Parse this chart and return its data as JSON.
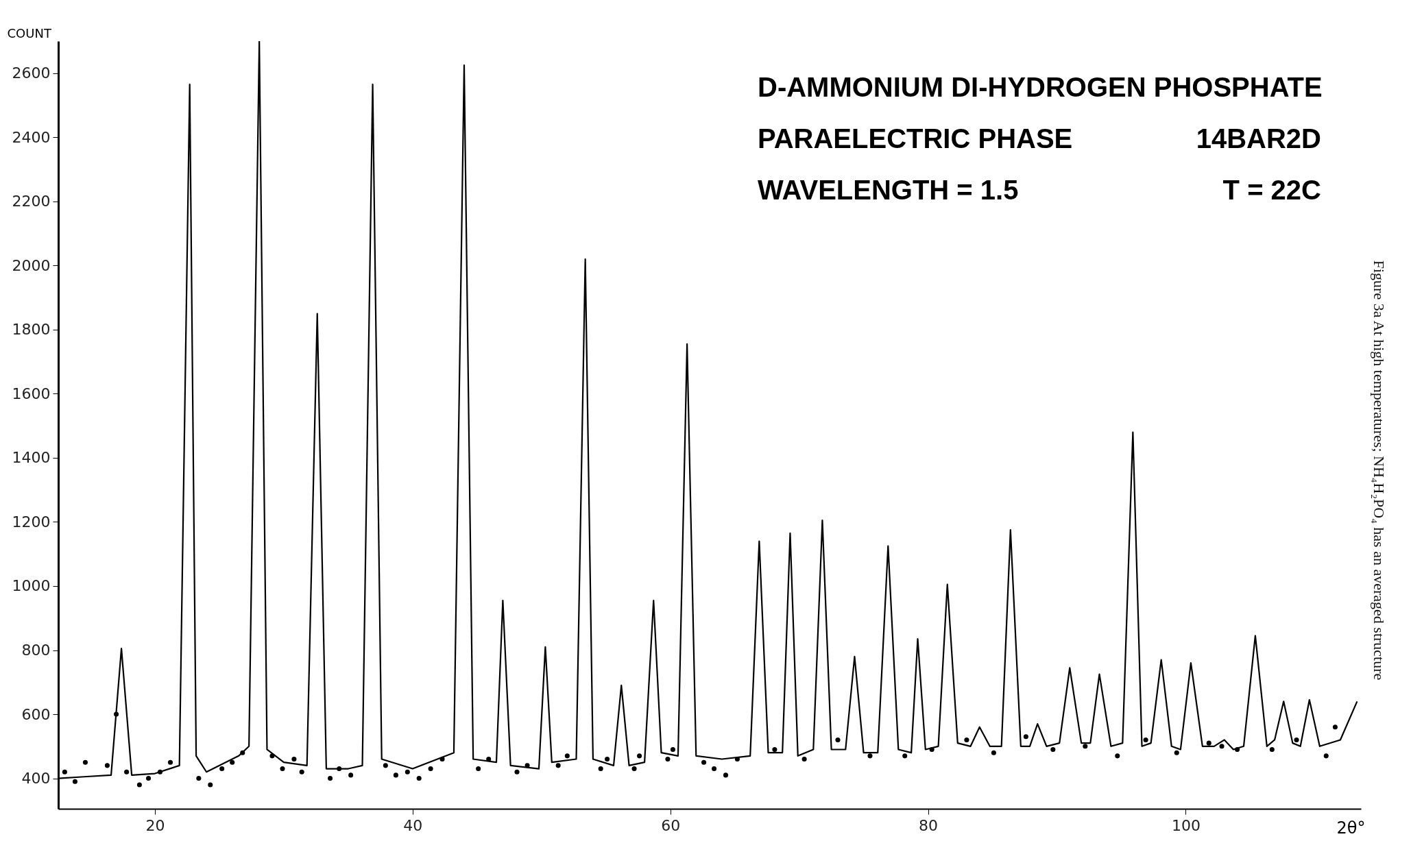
{
  "chart_data": {
    "type": "line",
    "title": "D-AMMONIUM DI-HYDROGEN PHOSPHATE",
    "xlabel": "2θ°",
    "ylabel": "COUNT",
    "annotations": [
      "PARAELECTRIC PHASE",
      "14BAR2D",
      "WAVELENGTH = 1.5",
      "T = 22C",
      "Figure 3a  At high temperatures; NH₄H₂PO₄ has an averaged structure"
    ],
    "xlim": [
      12.5,
      113.6
    ],
    "ylim": [
      305,
      2700
    ],
    "xticks": [
      20,
      40,
      60,
      80,
      100
    ],
    "yticks": [
      400,
      600,
      800,
      1000,
      1200,
      1400,
      1600,
      1800,
      2000,
      2200,
      2400,
      2600
    ],
    "grid": false,
    "series": [
      {
        "color": "#000000",
        "x": [
          12.5,
          14.5,
          16.6,
          17.4,
          18.2,
          20,
          21.9,
          22.7,
          23.2,
          24,
          26.5,
          27.3,
          28.1,
          28.7,
          30,
          31.8,
          32.6,
          33.3,
          35,
          36.1,
          36.9,
          37.6,
          40,
          43.2,
          44.0,
          44.7,
          46.5,
          47.0,
          47.6,
          49.8,
          50.3,
          50.8,
          52.7,
          53.4,
          54.0,
          55.6,
          56.2,
          56.8,
          58.0,
          58.7,
          59.3,
          60.6,
          61.3,
          62.0,
          64,
          66.2,
          66.9,
          67.6,
          68.7,
          69.3,
          69.9,
          71.1,
          71.8,
          72.5,
          73.6,
          74.3,
          75.0,
          76.1,
          76.9,
          77.7,
          78.7,
          79.2,
          79.8,
          80.8,
          81.5,
          82.3,
          83.3,
          84.0,
          84.8,
          85.7,
          86.4,
          87.2,
          87.9,
          88.5,
          89.2,
          90.2,
          91.0,
          91.9,
          92.6,
          93.3,
          94.2,
          95.1,
          95.9,
          96.6,
          97.3,
          98.1,
          98.9,
          99.6,
          100.4,
          101.3,
          102.2,
          103.0,
          103.7,
          104.5,
          105.4,
          106.3,
          106.9,
          107.6,
          108.3,
          108.9,
          109.6,
          110.4,
          112.0,
          113.3
        ],
        "values": [
          400,
          405,
          410,
          805,
          410,
          415,
          440,
          2565,
          470,
          420,
          470,
          500,
          2700,
          490,
          450,
          440,
          1850,
          430,
          430,
          440,
          2565,
          460,
          430,
          480,
          2625,
          460,
          450,
          955,
          440,
          430,
          810,
          450,
          460,
          2020,
          460,
          440,
          690,
          440,
          450,
          955,
          480,
          470,
          1755,
          470,
          460,
          470,
          1140,
          480,
          480,
          1165,
          470,
          490,
          1205,
          490,
          490,
          780,
          480,
          480,
          1125,
          490,
          480,
          835,
          490,
          500,
          1005,
          510,
          500,
          560,
          500,
          500,
          1175,
          500,
          500,
          570,
          500,
          510,
          745,
          510,
          510,
          725,
          500,
          510,
          1480,
          500,
          510,
          770,
          500,
          490,
          760,
          500,
          500,
          520,
          490,
          500,
          845,
          500,
          520,
          640,
          510,
          500,
          645,
          500,
          520,
          640
        ]
      },
      {
        "type": "scatter",
        "color": "#000000",
        "x": [
          13,
          13.8,
          14.6,
          16.3,
          17.0,
          17.8,
          18.8,
          19.5,
          20.4,
          21.2,
          23.4,
          24.3,
          25.2,
          26.0,
          26.8,
          29.1,
          29.9,
          30.8,
          31.4,
          33.6,
          34.3,
          35.2,
          37.9,
          38.7,
          39.6,
          40.5,
          41.4,
          42.3,
          45.1,
          45.9,
          48.1,
          48.9,
          51.3,
          52.0,
          54.6,
          55.1,
          57.2,
          57.6,
          59.8,
          60.2,
          62.6,
          63.4,
          64.3,
          65.2,
          68.1,
          70.4,
          73.0,
          75.5,
          78.2,
          80.3,
          83.0,
          85.1,
          87.6,
          89.7,
          92.2,
          94.7,
          96.9,
          99.3,
          101.8,
          102.8,
          104.0,
          106.7,
          108.6,
          110.9,
          111.6
        ],
        "values": [
          420,
          390,
          450,
          440,
          600,
          420,
          380,
          400,
          420,
          450,
          400,
          380,
          430,
          450,
          480,
          470,
          430,
          460,
          420,
          400,
          430,
          410,
          440,
          410,
          420,
          400,
          430,
          460,
          430,
          460,
          420,
          440,
          440,
          470,
          430,
          460,
          430,
          470,
          460,
          490,
          450,
          430,
          410,
          460,
          490,
          460,
          520,
          470,
          470,
          490,
          520,
          480,
          530,
          490,
          500,
          470,
          520,
          480,
          510,
          500,
          490,
          490,
          520,
          470,
          560
        ]
      }
    ]
  }
}
